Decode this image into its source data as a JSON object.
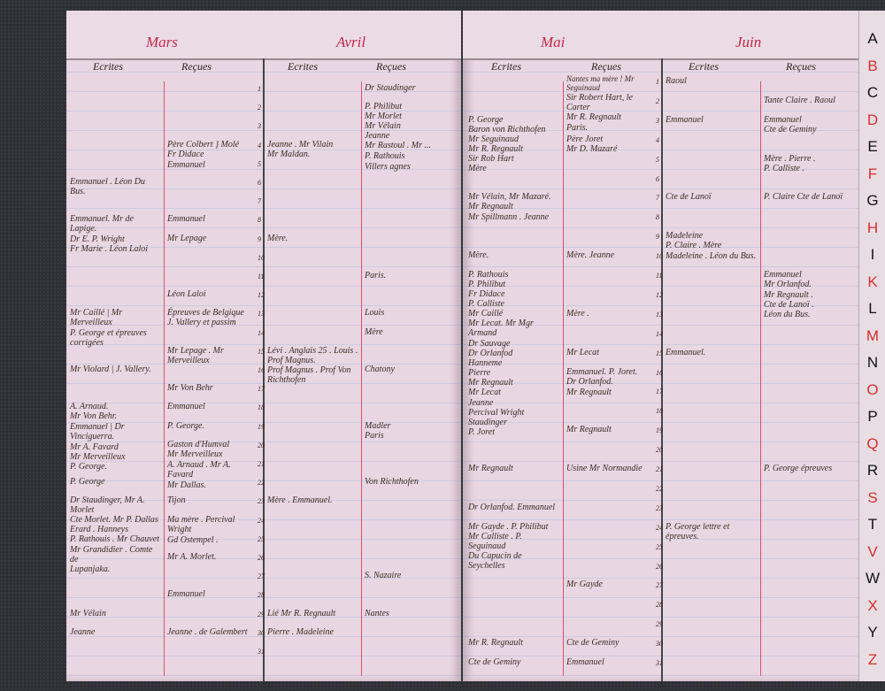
{
  "left_page": {
    "months": [
      "Mars",
      "Avril"
    ],
    "col_ecrites": "Ecrites",
    "col_recues": "Reçues",
    "entries": {
      "mars_ecrites": [
        {
          "day": 6,
          "text": "Emmanuel . Léon Du Bus."
        },
        {
          "day": 8,
          "text": "Emmanuel. Mr de Lapige."
        },
        {
          "day": 9,
          "text": "Dr E. P. Wright\nFr Marie . Léon Laloi"
        },
        {
          "day": 13,
          "text": "Mr Caillé | Mr Merveilleux"
        },
        {
          "day": 14,
          "text": "P. George et épreuves corrigées"
        },
        {
          "day": 16,
          "text": "Mr Violard | J. Vallery."
        },
        {
          "day": 18,
          "text": "A. Arnaud.\nMr Von Behr."
        },
        {
          "day": 19,
          "text": "Emmanuel | Dr Vinciguerra."
        },
        {
          "day": 20,
          "text": "Mr A. Favard\nMr Merveilleux\nP. George."
        },
        {
          "day": 22,
          "text": "P. George"
        },
        {
          "day": 23,
          "text": "Dr Staudinger, Mr A. Morlet\nCte Morlet. Mr P. Dallas\nErard . Hanneys\nP. Rathouis . Mr Chauvet"
        },
        {
          "day": 25,
          "text": "Mr Grandidier . Comte de\nLupanjaka."
        },
        {
          "day": 29,
          "text": "Mr Vélain"
        },
        {
          "day": 30,
          "text": "Jeanne"
        }
      ],
      "mars_recues": [
        {
          "day": 4,
          "text": "Père Colbert } Molé\nFr Didace"
        },
        {
          "day": 5,
          "text": "Emmanuel"
        },
        {
          "day": 8,
          "text": "Emmanuel"
        },
        {
          "day": 9,
          "text": "Mr Lepage"
        },
        {
          "day": 12,
          "text": "Léon Laloi"
        },
        {
          "day": 13,
          "text": "Épreuves de Belgique\nJ. Vallery et passim"
        },
        {
          "day": 15,
          "text": "Mr Lepage . Mr Merveilleux"
        },
        {
          "day": 17,
          "text": "Mr Von Behr"
        },
        {
          "day": 18,
          "text": "Emmanuel"
        },
        {
          "day": 19,
          "text": "P. George."
        },
        {
          "day": 20,
          "text": "Gaston d'Humval\nMr Merveilleux"
        },
        {
          "day": 21,
          "text": "A. Arnaud . Mr A. Favard"
        },
        {
          "day": 22,
          "text": "Mr Dallas."
        },
        {
          "day": 23,
          "text": "Tijon"
        },
        {
          "day": 24,
          "text": "Ma mère . Percival Wright"
        },
        {
          "day": 25,
          "text": "Gd Ostempel ."
        },
        {
          "day": 26,
          "text": "Mr A. Morlet."
        },
        {
          "day": 28,
          "text": "Emmanuel"
        },
        {
          "day": 30,
          "text": "Jeanne . de Galembert"
        }
      ],
      "avril_ecrites": [
        {
          "day": 4,
          "text": "Jeanne . Mr Vilain\nMr Maldan."
        },
        {
          "day": 9,
          "text": "Mère."
        },
        {
          "day": 15,
          "text": "Lévi . Anglais 25 . Louis . Prof Magnus.\nProf Magnus . Prof Von Richthofen"
        },
        {
          "day": 23,
          "text": "Mère . Emmanuel."
        },
        {
          "day": 29,
          "text": "Lié Mr R. Regnault"
        },
        {
          "day": 30,
          "text": "Pierre . Madeleine"
        }
      ],
      "avril_recues": [
        {
          "day": 1,
          "text": "Dr Staudinger"
        },
        {
          "day": 2,
          "text": "P. Philibut\nMr Morlet\nMr Vélain\nJeanne\nMr Rastoul . Mr ..."
        },
        {
          "day": 4,
          "text": "P. Rathouis"
        },
        {
          "day": 5,
          "text": "Villers agnes"
        },
        {
          "day": 11,
          "text": "Paris."
        },
        {
          "day": 13,
          "text": "Louis"
        },
        {
          "day": 14,
          "text": "Mère"
        },
        {
          "day": 16,
          "text": "Chatony"
        },
        {
          "day": 19,
          "text": "Madler\nParis"
        },
        {
          "day": 22,
          "text": "Von Richthofen"
        },
        {
          "day": 27,
          "text": "S. Nazaire"
        },
        {
          "day": 29,
          "text": "Nantes"
        }
      ]
    }
  },
  "right_page": {
    "months": [
      "Mai",
      "Juin"
    ],
    "col_ecrites": "Ecrites",
    "col_recues": "Reçues",
    "top_note": "Nantes ma mère ! Mr Seguinaud",
    "entries": {
      "mai_ecrites": [
        {
          "day": 3,
          "text": "P. George\nBaron von Richthofen\nMr Seguinaud\nMr R. Regnault\nSir Rob Hart\nMère"
        },
        {
          "day": 7,
          "text": "Mr Vélain, Mr Mazaré.\nMr Regnault"
        },
        {
          "day": 8,
          "text": "Mr Spillmann . Jeanne"
        },
        {
          "day": 10,
          "text": "Mère."
        },
        {
          "day": 11,
          "text": "P. Rathouis\nP. Philibut\nFr Didace\nP. Calliste\nMr Caillé\nMr Lecat. Mr Mgr Armand"
        },
        {
          "day": 14,
          "text": "Dr Sauvage\nDr Orlanfod\nHanneme\nPierre\nMr Regnault\nMr Lecat"
        },
        {
          "day": 16,
          "text": "Jeanne\nPercival Wright\nStaudinger\nP. Joret"
        },
        {
          "day": 21,
          "text": "Mr Regnault"
        },
        {
          "day": 23,
          "text": "Dr Orlanfod. Emmanuel"
        },
        {
          "day": 24,
          "text": "Mr Gayde . P. Philibut\nMr Calliste . P. Seguinaud\nDu Capucin de Seychelles"
        },
        {
          "day": 30,
          "text": "Mr R. Regnault"
        },
        {
          "day": 31,
          "text": "Cte de Geminy"
        }
      ],
      "mai_recues": [
        {
          "day": 1,
          "text": "Sir Robert Hart, le Carter\nMr R. Regnault"
        },
        {
          "day": 2,
          "text": "Paris."
        },
        {
          "day": 4,
          "text": "Père Joret\nMr D. Mazaré"
        },
        {
          "day": 10,
          "text": "Mère. Jeanne"
        },
        {
          "day": 13,
          "text": "Mère ."
        },
        {
          "day": 15,
          "text": "Mr Lecat"
        },
        {
          "day": 16,
          "text": "Emmanuel. P. Joret.\nDr Orlanfod."
        },
        {
          "day": 17,
          "text": "Mr Regnault"
        },
        {
          "day": 19,
          "text": "Mr Regnault"
        },
        {
          "day": 21,
          "text": "Usine Mr Normandie"
        },
        {
          "day": 27,
          "text": "Mr Gayde"
        },
        {
          "day": 30,
          "text": "Cte de Geminy"
        },
        {
          "day": 31,
          "text": "Emmanuel"
        }
      ],
      "juin_ecrites": [
        {
          "day": 1,
          "text": "Raoul"
        },
        {
          "day": 3,
          "text": "Emmanuel"
        },
        {
          "day": 7,
          "text": "Cte de Lanoï"
        },
        {
          "day": 9,
          "text": "Madeleine\nP. Claire . Mère"
        },
        {
          "day": 10,
          "text": "Madeleine . Léon du Bus."
        },
        {
          "day": 15,
          "text": "Emmanuel."
        },
        {
          "day": 24,
          "text": "P. George lettre et épreuves."
        }
      ],
      "juin_recues": [
        {
          "day": 2,
          "text": "Tante Claire . Raoul"
        },
        {
          "day": 3,
          "text": "Emmanuel\nCte de Geminy"
        },
        {
          "day": 5,
          "text": "Mère . Pierre .\nP. Calliste ."
        },
        {
          "day": 7,
          "text": "P. Claire  Cte de Lanoï"
        },
        {
          "day": 11,
          "text": "Emmanuel\nMr Orlanfod."
        },
        {
          "day": 12,
          "text": "Mr Regnault .\nCte de Lanoï .\nLéon du Bus."
        },
        {
          "day": 21,
          "text": "P. George épreuves"
        }
      ]
    }
  },
  "index_tabs": {
    "letters": [
      "A",
      "B",
      "C",
      "D",
      "E",
      "F",
      "G",
      "H",
      "I",
      "K",
      "L",
      "M",
      "N",
      "O",
      "P",
      "Q",
      "R",
      "S",
      "T",
      "V",
      "W",
      "X",
      "Y",
      "Z"
    ],
    "colors": [
      "#111111",
      "#d2302a"
    ]
  },
  "colors": {
    "ink": "#3a2b22",
    "red_ink": "#c2274a",
    "paper": "#e8d6e2"
  }
}
